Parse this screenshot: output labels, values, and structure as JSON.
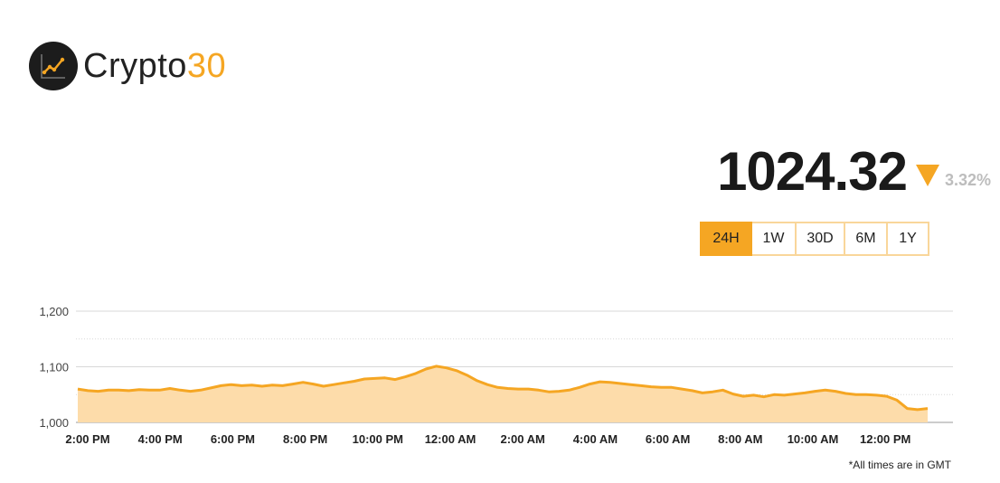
{
  "brand": {
    "name_main": "Crypto",
    "name_accent": "30",
    "icon": "line-chart-icon",
    "accent_color": "#f5a623"
  },
  "price": {
    "value": "1024.32",
    "direction": "down",
    "change": "3.32%"
  },
  "ranges": [
    {
      "label": "24H",
      "active": true
    },
    {
      "label": "1W",
      "active": false
    },
    {
      "label": "30D",
      "active": false
    },
    {
      "label": "6M",
      "active": false
    },
    {
      "label": "1Y",
      "active": false
    }
  ],
  "chart_data": {
    "type": "area",
    "yticks": [
      "1,000",
      "1,100",
      "1,200"
    ],
    "ylim": [
      1000,
      1200
    ],
    "xticks": [
      "2:00 PM",
      "4:00 PM",
      "6:00 PM",
      "8:00 PM",
      "10:00 PM",
      "12:00 AM",
      "2:00 AM",
      "4:00 AM",
      "6:00 AM",
      "8:00 AM",
      "10:00 AM",
      "12:00 PM"
    ],
    "grid": true,
    "values": [
      1060,
      1057,
      1056,
      1058,
      1058,
      1057,
      1059,
      1058,
      1058,
      1061,
      1058,
      1056,
      1058,
      1062,
      1066,
      1068,
      1066,
      1067,
      1065,
      1067,
      1066,
      1069,
      1072,
      1069,
      1065,
      1068,
      1071,
      1074,
      1078,
      1079,
      1080,
      1077,
      1082,
      1088,
      1096,
      1101,
      1098,
      1093,
      1085,
      1075,
      1068,
      1063,
      1061,
      1060,
      1060,
      1058,
      1055,
      1056,
      1058,
      1063,
      1069,
      1073,
      1072,
      1070,
      1068,
      1066,
      1064,
      1063,
      1063,
      1060,
      1057,
      1053,
      1055,
      1058,
      1051,
      1047,
      1049,
      1046,
      1050,
      1049,
      1051,
      1053,
      1056,
      1058,
      1056,
      1052,
      1050,
      1050,
      1049,
      1047,
      1040,
      1025,
      1023,
      1025
    ],
    "line_color": "#f5a623",
    "fill_color": "#fddcaa"
  },
  "footnote": "*All times are in GMT"
}
